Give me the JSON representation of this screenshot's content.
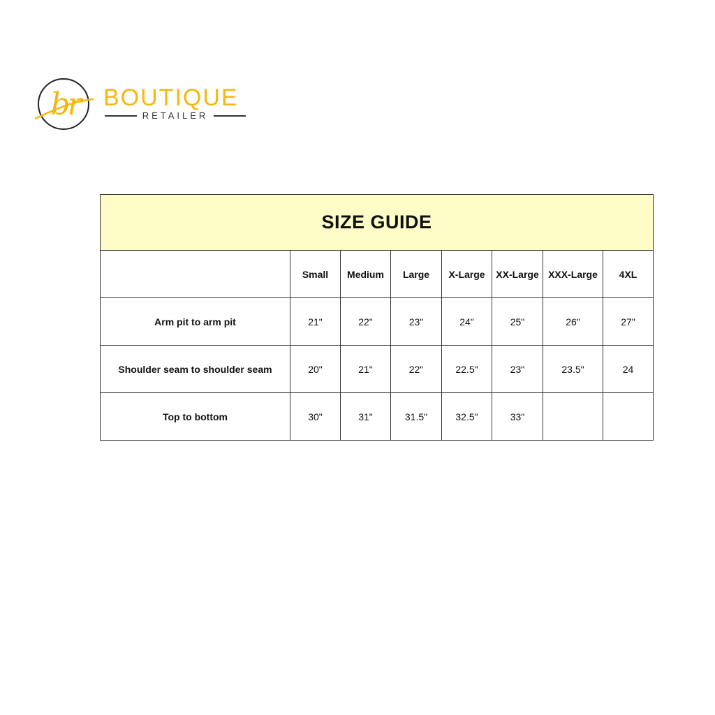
{
  "logo": {
    "monogram": "br",
    "brand": "BOUTIQUE",
    "subtitle": "RETAILER",
    "color": "#f5b90d"
  },
  "table": {
    "title": "SIZE GUIDE",
    "title_bg": "#fefdc8",
    "columns": [
      "",
      "Small",
      "Medium",
      "Large",
      "X-Large",
      "XX-Large",
      "XXX-Large",
      "4XL"
    ],
    "rows": [
      {
        "label": "Arm pit to arm pit",
        "values": [
          "21\"",
          "22\"",
          "23\"",
          "24\"",
          "25\"",
          "26\"",
          "27\""
        ]
      },
      {
        "label": "Shoulder seam to shoulder seam",
        "values": [
          "20\"",
          "21\"",
          "22\"",
          "22.5\"",
          "23\"",
          "23.5\"",
          "24"
        ]
      },
      {
        "label": "Top to bottom",
        "values": [
          "30\"",
          "31\"",
          "31.5\"",
          "32.5\"",
          "33\"",
          "",
          ""
        ]
      }
    ]
  }
}
